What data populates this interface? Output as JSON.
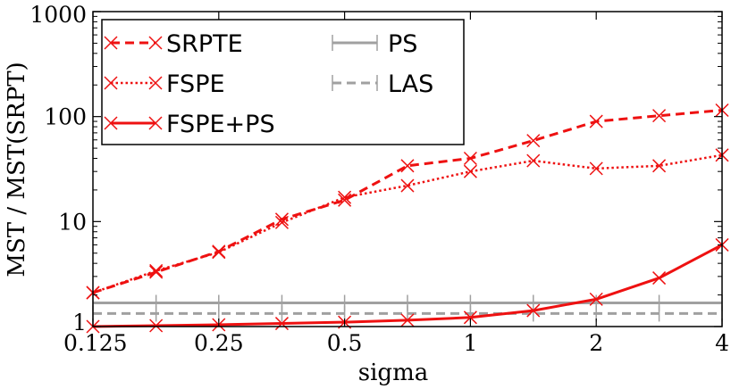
{
  "chart_data": {
    "type": "line",
    "title": "",
    "xlabel": "sigma",
    "ylabel": "MST / MST(SRPT)",
    "xscale": "log2",
    "yscale": "log10",
    "xlim": [
      0.125,
      4
    ],
    "ylim": [
      1,
      1000
    ],
    "xticks": [
      {
        "value": 0.125,
        "label": "0.125"
      },
      {
        "value": 0.25,
        "label": "0.25"
      },
      {
        "value": 0.5,
        "label": "0.5"
      },
      {
        "value": 1,
        "label": "1"
      },
      {
        "value": 2,
        "label": "2"
      },
      {
        "value": 4,
        "label": "4"
      }
    ],
    "yticks": [
      {
        "value": 1,
        "label": "1"
      },
      {
        "value": 10,
        "label": "10"
      },
      {
        "value": 100,
        "label": "100"
      },
      {
        "value": 1000,
        "label": "1000"
      }
    ],
    "x": [
      0.125,
      0.177,
      0.25,
      0.354,
      0.5,
      0.707,
      1,
      1.414,
      2,
      2.828,
      4
    ],
    "series": [
      {
        "name": "SRPTE",
        "color": "#ee1111",
        "style": "dashed",
        "marker": "x",
        "values": [
          2.1,
          3.3,
          5.2,
          10.5,
          16,
          34,
          40,
          59,
          90,
          102,
          115
        ]
      },
      {
        "name": "FSPE",
        "color": "#ee1111",
        "style": "dotted",
        "marker": "x",
        "values": [
          2.1,
          3.4,
          5.1,
          9.8,
          17,
          22,
          30,
          38,
          32,
          34,
          43
        ]
      },
      {
        "name": "FSPE+PS",
        "color": "#ee1111",
        "style": "solid",
        "marker": "x",
        "values": [
          1.0,
          1.02,
          1.04,
          1.07,
          1.1,
          1.15,
          1.22,
          1.42,
          1.82,
          2.9,
          6.0
        ]
      },
      {
        "name": "PS",
        "color": "#a0a0a0",
        "style": "solid",
        "marker": "|",
        "values": [
          1.68,
          1.68,
          1.68,
          1.68,
          1.68,
          1.68,
          1.68,
          1.68,
          1.68,
          1.68,
          1.68
        ]
      },
      {
        "name": "LAS",
        "color": "#a0a0a0",
        "style": "dashed",
        "marker": "|",
        "values": [
          1.33,
          1.33,
          1.33,
          1.33,
          1.33,
          1.33,
          1.33,
          1.33,
          1.33,
          1.33,
          1.33
        ]
      }
    ],
    "legend": {
      "placement": "top-left",
      "columns": 2
    },
    "grid": false
  }
}
